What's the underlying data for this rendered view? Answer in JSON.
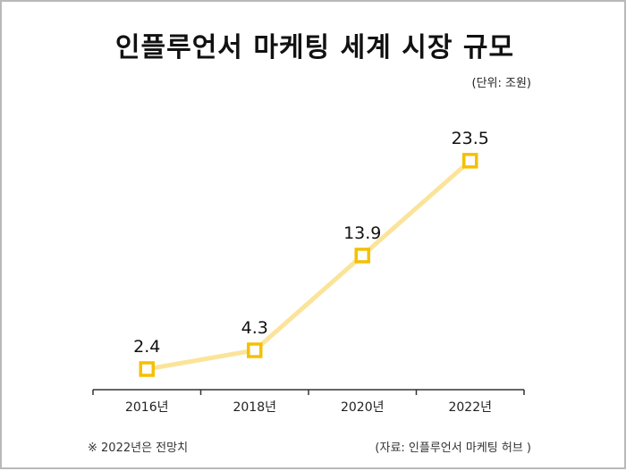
{
  "chart_data": {
    "type": "line",
    "title": "인플루언서 마케팅 세계 시장 규모",
    "unit": "(단위: 조원)",
    "categories": [
      "2016년",
      "2018년",
      "2020년",
      "2022년"
    ],
    "values": [
      2.4,
      4.3,
      13.9,
      23.5
    ],
    "value_labels": [
      "2.4",
      "4.3",
      "13.9",
      "23.5"
    ],
    "xlabel": "",
    "ylabel": "",
    "ylim": [
      0,
      25
    ],
    "grid": false,
    "legend": "none",
    "line_color": "#fbe49a",
    "marker_color": "#f5c000",
    "note": "※ 2022년은 전망치",
    "source": "(자료: 인플루언서 마케팅 허브 )"
  }
}
